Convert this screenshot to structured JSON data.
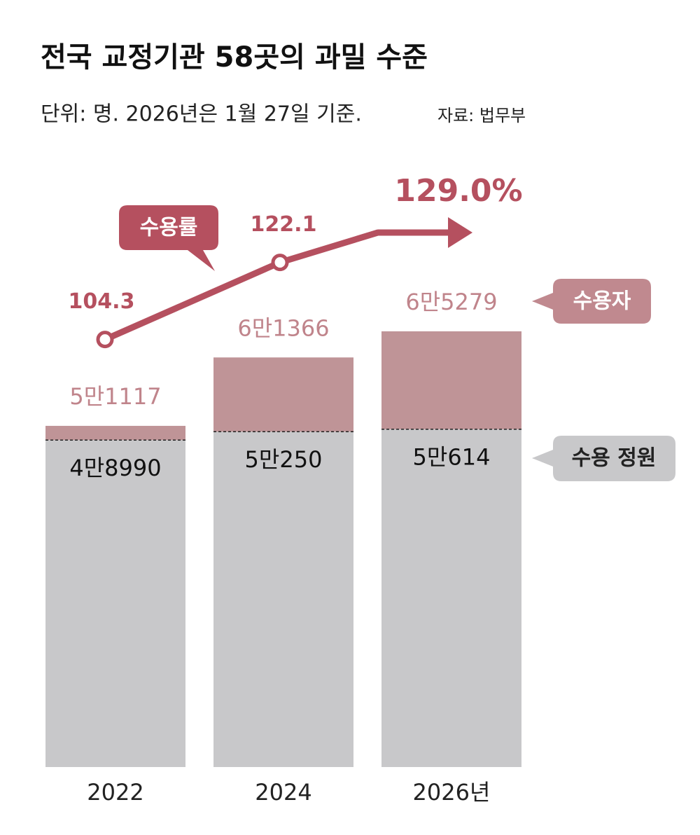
{
  "chart_data": {
    "type": "bar",
    "title": "전국 교정기관 58곳의 과밀 수준",
    "subtitle": "단위: 명. 2026년은 1월 27일 기준.",
    "source": "자료: 법무부",
    "categories": [
      "2022",
      "2024",
      "2026년"
    ],
    "ylim": [
      0,
      70000
    ],
    "y2lim": [
      90,
      140
    ],
    "series": [
      {
        "name": "수용 정원",
        "color": "#c8c8ca",
        "values": [
          48990,
          50250,
          50614
        ],
        "value_labels": [
          "4만8990",
          "5만250",
          "5만614"
        ]
      },
      {
        "name": "수용자",
        "color": "#bf9497",
        "values": [
          51117,
          61366,
          65279
        ],
        "value_labels": [
          "5만1117",
          "6만1366",
          "6만5279"
        ]
      },
      {
        "name": "수용률",
        "type": "line",
        "axis": "y2",
        "color": "#b5505f",
        "values": [
          104.3,
          122.1,
          129.0
        ],
        "value_labels": [
          "104.3",
          "122.1",
          "129.0%"
        ]
      }
    ]
  }
}
